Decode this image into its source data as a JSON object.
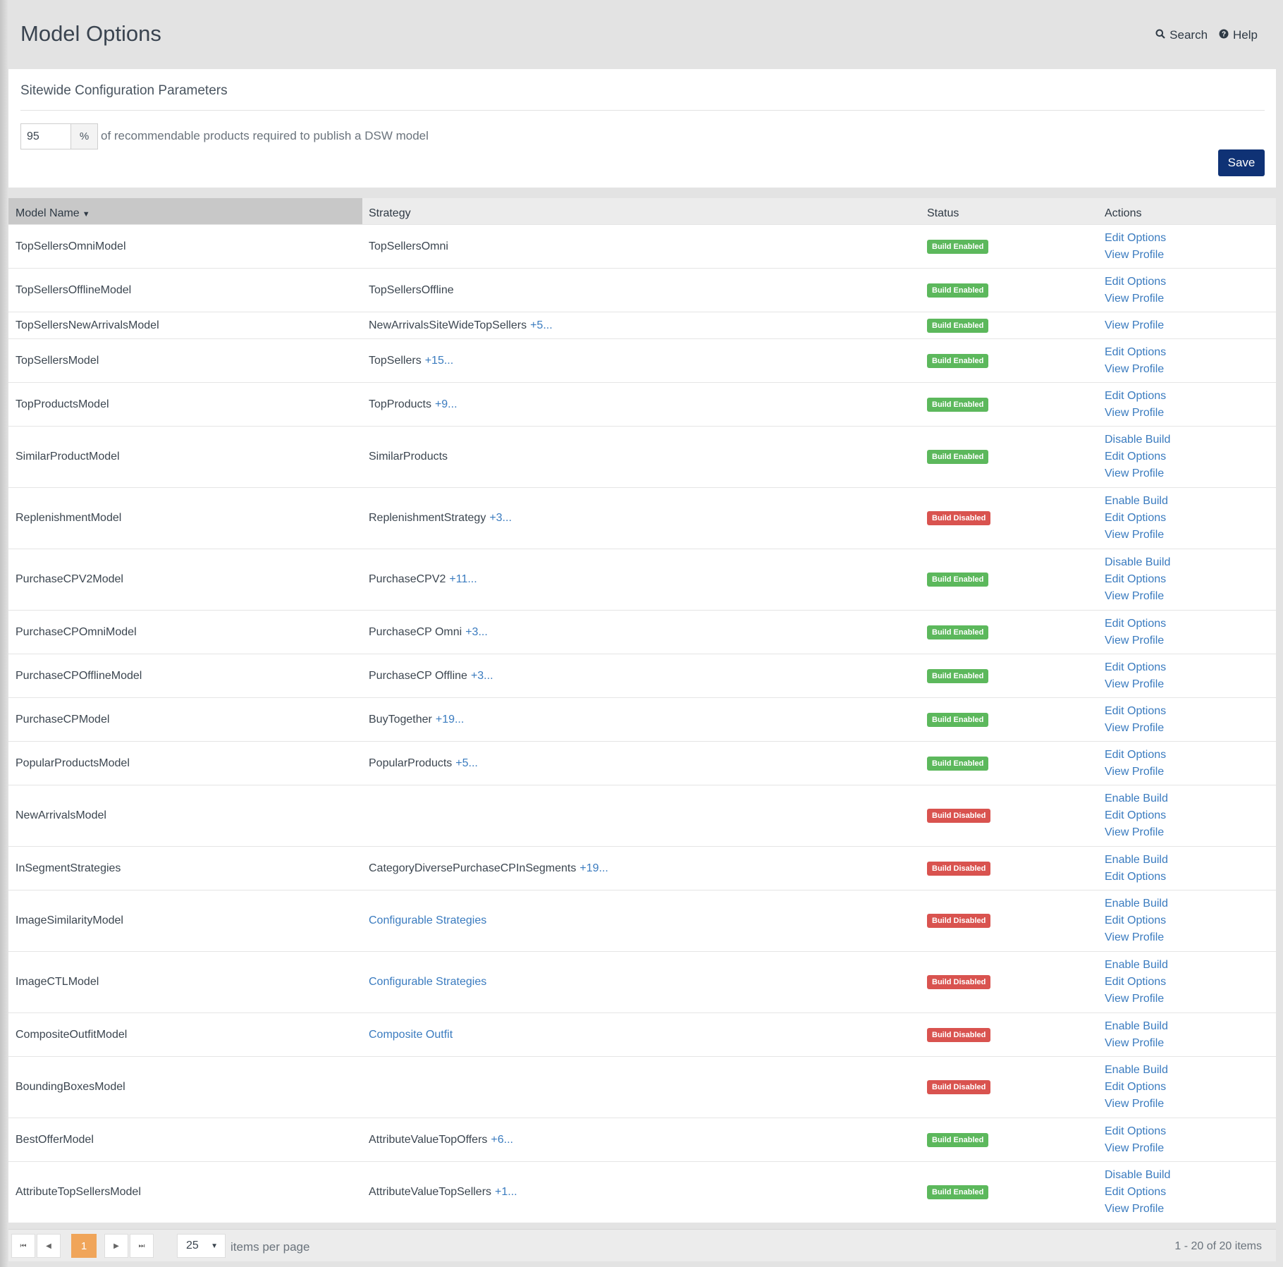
{
  "header": {
    "title": "Model Options",
    "search_label": "Search",
    "help_label": "Help"
  },
  "config": {
    "title": "Sitewide Configuration Parameters",
    "percent_value": "95",
    "percent_symbol": "%",
    "description": "of recommendable products required to publish a DSW model",
    "save_label": "Save"
  },
  "grid": {
    "columns": {
      "model_name": "Model Name",
      "strategy": "Strategy",
      "status": "Status",
      "actions": "Actions"
    },
    "rows": [
      {
        "name": "TopSellersOmniModel",
        "strategy": "TopSellersOmni",
        "more": "",
        "strategy_link": false,
        "status": "Build Enabled",
        "status_type": "enabled",
        "actions": [
          "Edit Options",
          "View Profile"
        ]
      },
      {
        "name": "TopSellersOfflineModel",
        "strategy": "TopSellersOffline",
        "more": "",
        "strategy_link": false,
        "status": "Build Enabled",
        "status_type": "enabled",
        "actions": [
          "Edit Options",
          "View Profile"
        ]
      },
      {
        "name": "TopSellersNewArrivalsModel",
        "strategy": "NewArrivalsSiteWideTopSellers",
        "more": "+5...",
        "strategy_link": false,
        "status": "Build Enabled",
        "status_type": "enabled",
        "actions": [
          "View Profile"
        ]
      },
      {
        "name": "TopSellersModel",
        "strategy": "TopSellers",
        "more": "+15...",
        "strategy_link": false,
        "status": "Build Enabled",
        "status_type": "enabled",
        "actions": [
          "Edit Options",
          "View Profile"
        ]
      },
      {
        "name": "TopProductsModel",
        "strategy": "TopProducts",
        "more": "+9...",
        "strategy_link": false,
        "status": "Build Enabled",
        "status_type": "enabled",
        "actions": [
          "Edit Options",
          "View Profile"
        ]
      },
      {
        "name": "SimilarProductModel",
        "strategy": "SimilarProducts",
        "more": "",
        "strategy_link": false,
        "status": "Build Enabled",
        "status_type": "enabled",
        "actions": [
          "Disable Build",
          "Edit Options",
          "View Profile"
        ]
      },
      {
        "name": "ReplenishmentModel",
        "strategy": "ReplenishmentStrategy",
        "more": "+3...",
        "strategy_link": false,
        "status": "Build Disabled",
        "status_type": "disabled",
        "actions": [
          "Enable Build",
          "Edit Options",
          "View Profile"
        ]
      },
      {
        "name": "PurchaseCPV2Model",
        "strategy": "PurchaseCPV2",
        "more": "+11...",
        "strategy_link": false,
        "status": "Build Enabled",
        "status_type": "enabled",
        "actions": [
          "Disable Build",
          "Edit Options",
          "View Profile"
        ]
      },
      {
        "name": "PurchaseCPOmniModel",
        "strategy": "PurchaseCP Omni",
        "more": "+3...",
        "strategy_link": false,
        "status": "Build Enabled",
        "status_type": "enabled",
        "actions": [
          "Edit Options",
          "View Profile"
        ]
      },
      {
        "name": "PurchaseCPOfflineModel",
        "strategy": "PurchaseCP Offline",
        "more": "+3...",
        "strategy_link": false,
        "status": "Build Enabled",
        "status_type": "enabled",
        "actions": [
          "Edit Options",
          "View Profile"
        ]
      },
      {
        "name": "PurchaseCPModel",
        "strategy": "BuyTogether",
        "more": "+19...",
        "strategy_link": false,
        "status": "Build Enabled",
        "status_type": "enabled",
        "actions": [
          "Edit Options",
          "View Profile"
        ]
      },
      {
        "name": "PopularProductsModel",
        "strategy": "PopularProducts",
        "more": "+5...",
        "strategy_link": false,
        "status": "Build Enabled",
        "status_type": "enabled",
        "actions": [
          "Edit Options",
          "View Profile"
        ]
      },
      {
        "name": "NewArrivalsModel",
        "strategy": "",
        "more": "",
        "strategy_link": false,
        "status": "Build Disabled",
        "status_type": "disabled",
        "actions": [
          "Enable Build",
          "Edit Options",
          "View Profile"
        ]
      },
      {
        "name": "InSegmentStrategies",
        "strategy": "CategoryDiversePurchaseCPInSegments",
        "more": "+19...",
        "strategy_link": false,
        "status": "Build Disabled",
        "status_type": "disabled",
        "actions": [
          "Enable Build",
          "Edit Options"
        ]
      },
      {
        "name": "ImageSimilarityModel",
        "strategy": "Configurable Strategies",
        "more": "",
        "strategy_link": true,
        "status": "Build Disabled",
        "status_type": "disabled",
        "actions": [
          "Enable Build",
          "Edit Options",
          "View Profile"
        ]
      },
      {
        "name": "ImageCTLModel",
        "strategy": "Configurable Strategies",
        "more": "",
        "strategy_link": true,
        "status": "Build Disabled",
        "status_type": "disabled",
        "actions": [
          "Enable Build",
          "Edit Options",
          "View Profile"
        ]
      },
      {
        "name": "CompositeOutfitModel",
        "strategy": "Composite Outfit",
        "more": "",
        "strategy_link": true,
        "status": "Build Disabled",
        "status_type": "disabled",
        "actions": [
          "Enable Build",
          "View Profile"
        ]
      },
      {
        "name": "BoundingBoxesModel",
        "strategy": "",
        "more": "",
        "strategy_link": false,
        "status": "Build Disabled",
        "status_type": "disabled",
        "actions": [
          "Enable Build",
          "Edit Options",
          "View Profile"
        ]
      },
      {
        "name": "BestOfferModel",
        "strategy": "AttributeValueTopOffers",
        "more": "+6...",
        "strategy_link": false,
        "status": "Build Enabled",
        "status_type": "enabled",
        "actions": [
          "Edit Options",
          "View Profile"
        ]
      },
      {
        "name": "AttributeTopSellersModel",
        "strategy": "AttributeValueTopSellers",
        "more": "+1...",
        "strategy_link": false,
        "status": "Build Enabled",
        "status_type": "enabled",
        "actions": [
          "Disable Build",
          "Edit Options",
          "View Profile"
        ]
      }
    ]
  },
  "pager": {
    "current_page": "1",
    "page_size": "25",
    "items_per_page_label": "items per page",
    "info": "1 - 20 of 20 items"
  },
  "colors": {
    "accent_blue": "#3a7bbf",
    "save_button": "#0f3275",
    "enabled": "#5cb85c",
    "disabled": "#d9534f",
    "current_page": "#f0a55a"
  }
}
